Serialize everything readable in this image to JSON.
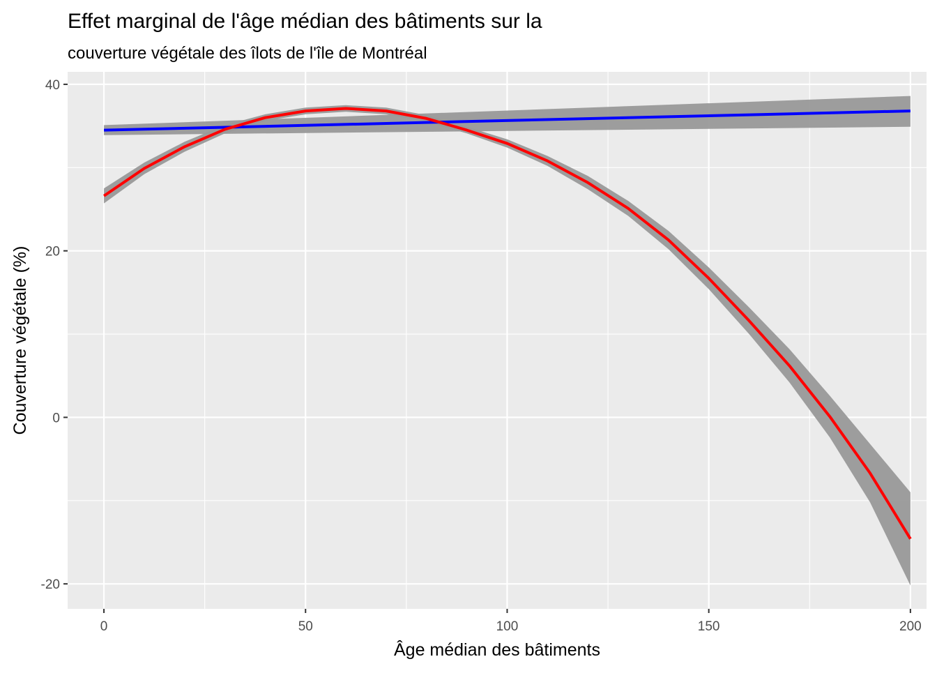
{
  "chart_data": {
    "type": "line",
    "title": "Effet marginal de l'âge médian des bâtiments sur la",
    "subtitle": "couverture végétale des îlots de l'île de Montréal",
    "xlabel": "Âge médian des bâtiments",
    "ylabel": "Couverture végétale (%)",
    "xlim": [
      -9,
      204
    ],
    "ylim": [
      -23,
      41.5
    ],
    "x_ticks": [
      0,
      50,
      100,
      150,
      200
    ],
    "y_ticks": [
      -20,
      0,
      20,
      40
    ],
    "grid": true,
    "legend": "none",
    "background": "#ebebeb",
    "ribbon_color": "#999999",
    "series": [
      {
        "color": "#0000ff",
        "x": [
          0,
          200
        ],
        "y": [
          34.5,
          36.8
        ],
        "ci_lower": [
          33.9,
          34.9
        ],
        "ci_upper": [
          35.1,
          38.6
        ]
      },
      {
        "color": "#ff0000",
        "x": [
          0,
          10,
          20,
          30,
          40,
          50,
          60,
          70,
          80,
          90,
          100,
          110,
          120,
          130,
          140,
          150,
          160,
          170,
          180,
          190,
          200
        ],
        "y": [
          26.6,
          29.9,
          32.5,
          34.6,
          36.0,
          36.8,
          37.1,
          36.8,
          35.9,
          34.5,
          32.9,
          30.8,
          28.2,
          25.1,
          21.3,
          16.7,
          11.6,
          6.2,
          0.1,
          -6.7,
          -14.6
        ],
        "ci_lower": [
          25.7,
          29.2,
          31.9,
          34.1,
          35.6,
          36.4,
          36.7,
          36.4,
          35.5,
          34.1,
          32.4,
          30.2,
          27.4,
          24.2,
          20.2,
          15.4,
          10.0,
          4.2,
          -2.4,
          -10.2,
          -20.2
        ],
        "ci_upper": [
          27.5,
          30.6,
          33.1,
          35.1,
          36.4,
          37.2,
          37.5,
          37.2,
          36.3,
          34.9,
          33.4,
          31.4,
          29.0,
          26.0,
          22.4,
          18.0,
          13.2,
          8.2,
          2.6,
          -3.2,
          -9.0
        ]
      }
    ]
  }
}
